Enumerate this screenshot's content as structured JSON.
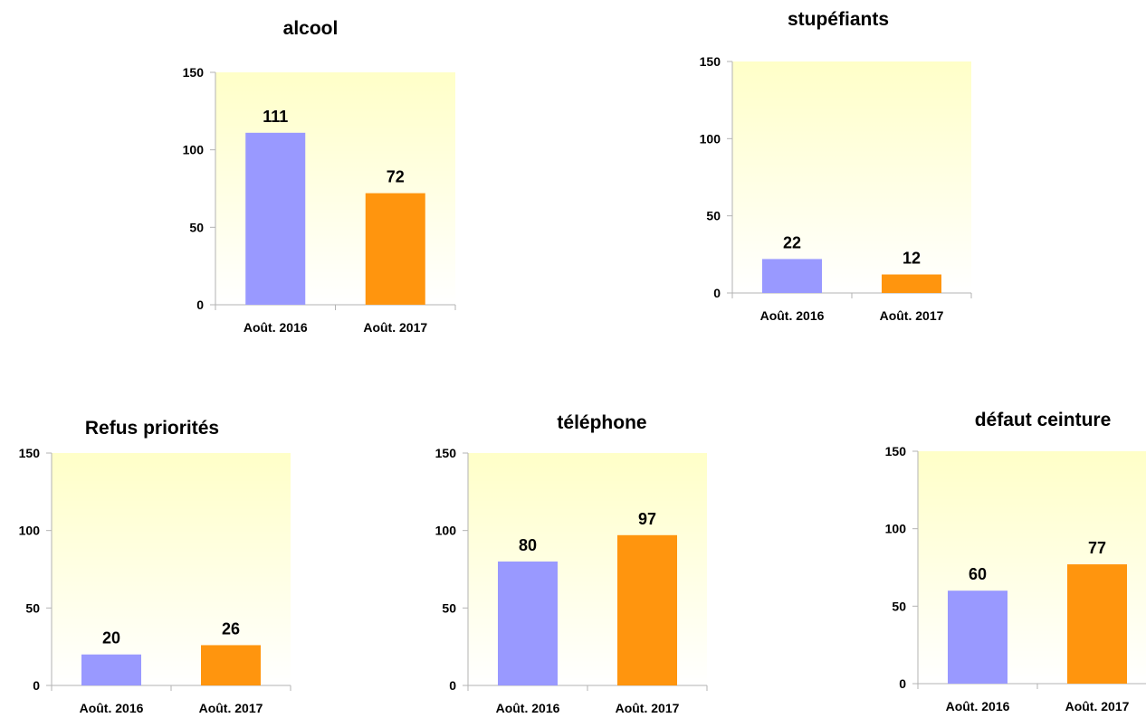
{
  "chart_data": [
    {
      "type": "bar",
      "title": "alcool",
      "categories": [
        "Août. 2016",
        "Août. 2017"
      ],
      "values": [
        111,
        72
      ],
      "ylim": [
        0,
        150
      ],
      "yticks": [
        0,
        50,
        100,
        150
      ],
      "colors": [
        "#9999ff",
        "#ff950e"
      ],
      "grid": false,
      "legend": "none"
    },
    {
      "type": "bar",
      "title": "stupéfiants",
      "categories": [
        "Août. 2016",
        "Août. 2017"
      ],
      "values": [
        22,
        12
      ],
      "ylim": [
        0,
        150
      ],
      "yticks": [
        0,
        50,
        100,
        150
      ],
      "colors": [
        "#9999ff",
        "#ff950e"
      ],
      "grid": false,
      "legend": "none"
    },
    {
      "type": "bar",
      "title": "Refus priorités",
      "categories": [
        "Août. 2016",
        "Août. 2017"
      ],
      "values": [
        20,
        26
      ],
      "ylim": [
        0,
        150
      ],
      "yticks": [
        0,
        50,
        100,
        150
      ],
      "colors": [
        "#9999ff",
        "#ff950e"
      ],
      "grid": false,
      "legend": "none"
    },
    {
      "type": "bar",
      "title": "téléphone",
      "categories": [
        "Août. 2016",
        "Août. 2017"
      ],
      "values": [
        80,
        97
      ],
      "ylim": [
        0,
        150
      ],
      "yticks": [
        0,
        50,
        100,
        150
      ],
      "colors": [
        "#9999ff",
        "#ff950e"
      ],
      "grid": false,
      "legend": "none"
    },
    {
      "type": "bar",
      "title": "défaut ceinture",
      "categories": [
        "Août. 2016",
        "Août. 2017"
      ],
      "values": [
        60,
        77
      ],
      "ylim": [
        0,
        150
      ],
      "yticks": [
        0,
        50,
        100,
        150
      ],
      "colors": [
        "#9999ff",
        "#ff950e"
      ],
      "grid": false,
      "legend": "none"
    }
  ]
}
